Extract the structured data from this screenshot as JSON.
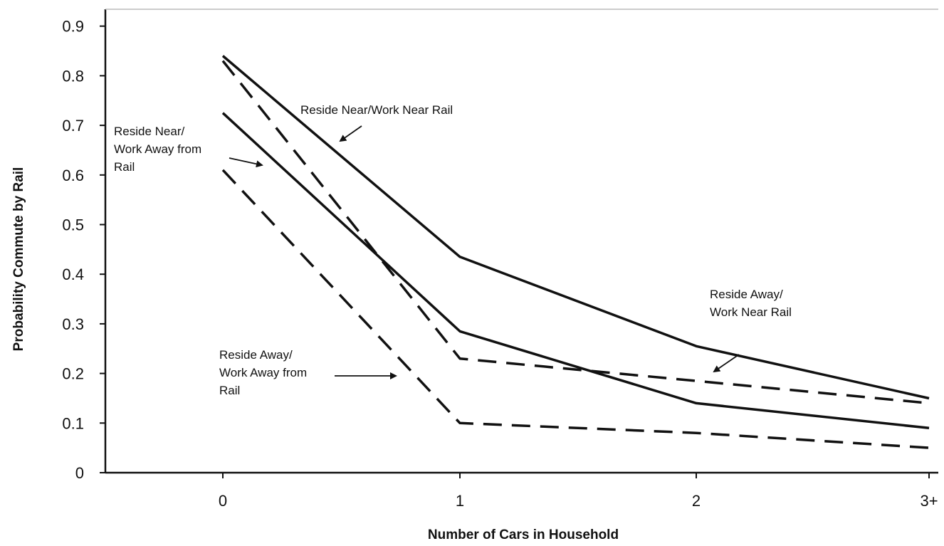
{
  "chart_data": {
    "type": "line",
    "title": "",
    "xlabel": "Number of Cars in Household",
    "ylabel": "Probability Commute by Rail",
    "categories": [
      "0",
      "1",
      "2",
      "3+"
    ],
    "ylim": [
      0,
      0.9
    ],
    "yticks": [
      "0",
      "0.1",
      "0.2",
      "0.3",
      "0.4",
      "0.5",
      "0.6",
      "0.7",
      "0.8",
      "0.9"
    ],
    "grid": false,
    "series": [
      {
        "style": "solid",
        "values": [
          0.84,
          0.435,
          0.255,
          0.15
        ]
      },
      {
        "style": "solid",
        "values": [
          0.725,
          0.285,
          0.14,
          0.09
        ]
      },
      {
        "style": "dashed",
        "values": [
          0.83,
          0.23,
          0.185,
          0.14
        ]
      },
      {
        "style": "dashed",
        "values": [
          0.61,
          0.1,
          0.08,
          0.05
        ]
      }
    ],
    "annotations": [
      {
        "lines": [
          "Reside Near/Work Near Rail"
        ],
        "series": 0
      },
      {
        "lines": [
          "Reside Near/",
          "Work Away from",
          "Rail"
        ],
        "series": 1
      },
      {
        "lines": [
          "Reside Away/",
          "Work Near Rail"
        ],
        "series": 2
      },
      {
        "lines": [
          "Reside Away/",
          "Work Away from",
          "Rail"
        ],
        "series": 3
      }
    ]
  }
}
